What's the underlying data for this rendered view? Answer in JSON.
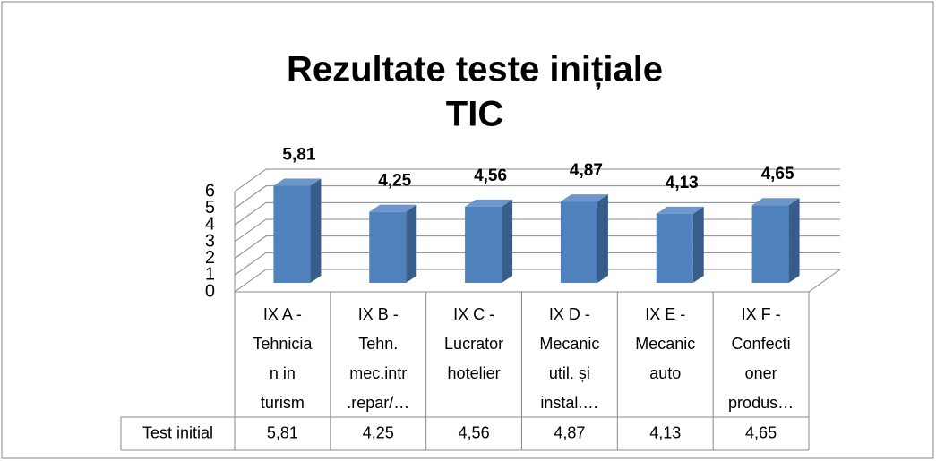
{
  "chart_data": {
    "type": "bar3d",
    "title": [
      "Rezultate teste inițiale",
      "TIC"
    ],
    "categories": [
      [
        "IX A -",
        "Tehnicia",
        "n in",
        "turism"
      ],
      [
        "IX B -",
        "Tehn.",
        "mec.intr",
        ".repar/…"
      ],
      [
        "IX C -",
        "Lucrator",
        "hotelier"
      ],
      [
        "IX D -",
        "Mecanic",
        "util. și",
        "instal.…"
      ],
      [
        "IX E -",
        "Mecanic",
        "auto"
      ],
      [
        "IX F -",
        "Confecti",
        "oner",
        "produs…"
      ]
    ],
    "series": [
      {
        "name": "Test initial",
        "color": "#4f81bd",
        "values": [
          5.81,
          4.25,
          4.56,
          4.87,
          4.13,
          4.65
        ],
        "value_labels": [
          "5,81",
          "4,25",
          "4,56",
          "4,87",
          "4,13",
          "4,65"
        ]
      }
    ],
    "ylim": [
      0,
      6
    ],
    "yticks": [
      0,
      1,
      2,
      3,
      4,
      5,
      6
    ],
    "grid": true,
    "data_table": true
  }
}
